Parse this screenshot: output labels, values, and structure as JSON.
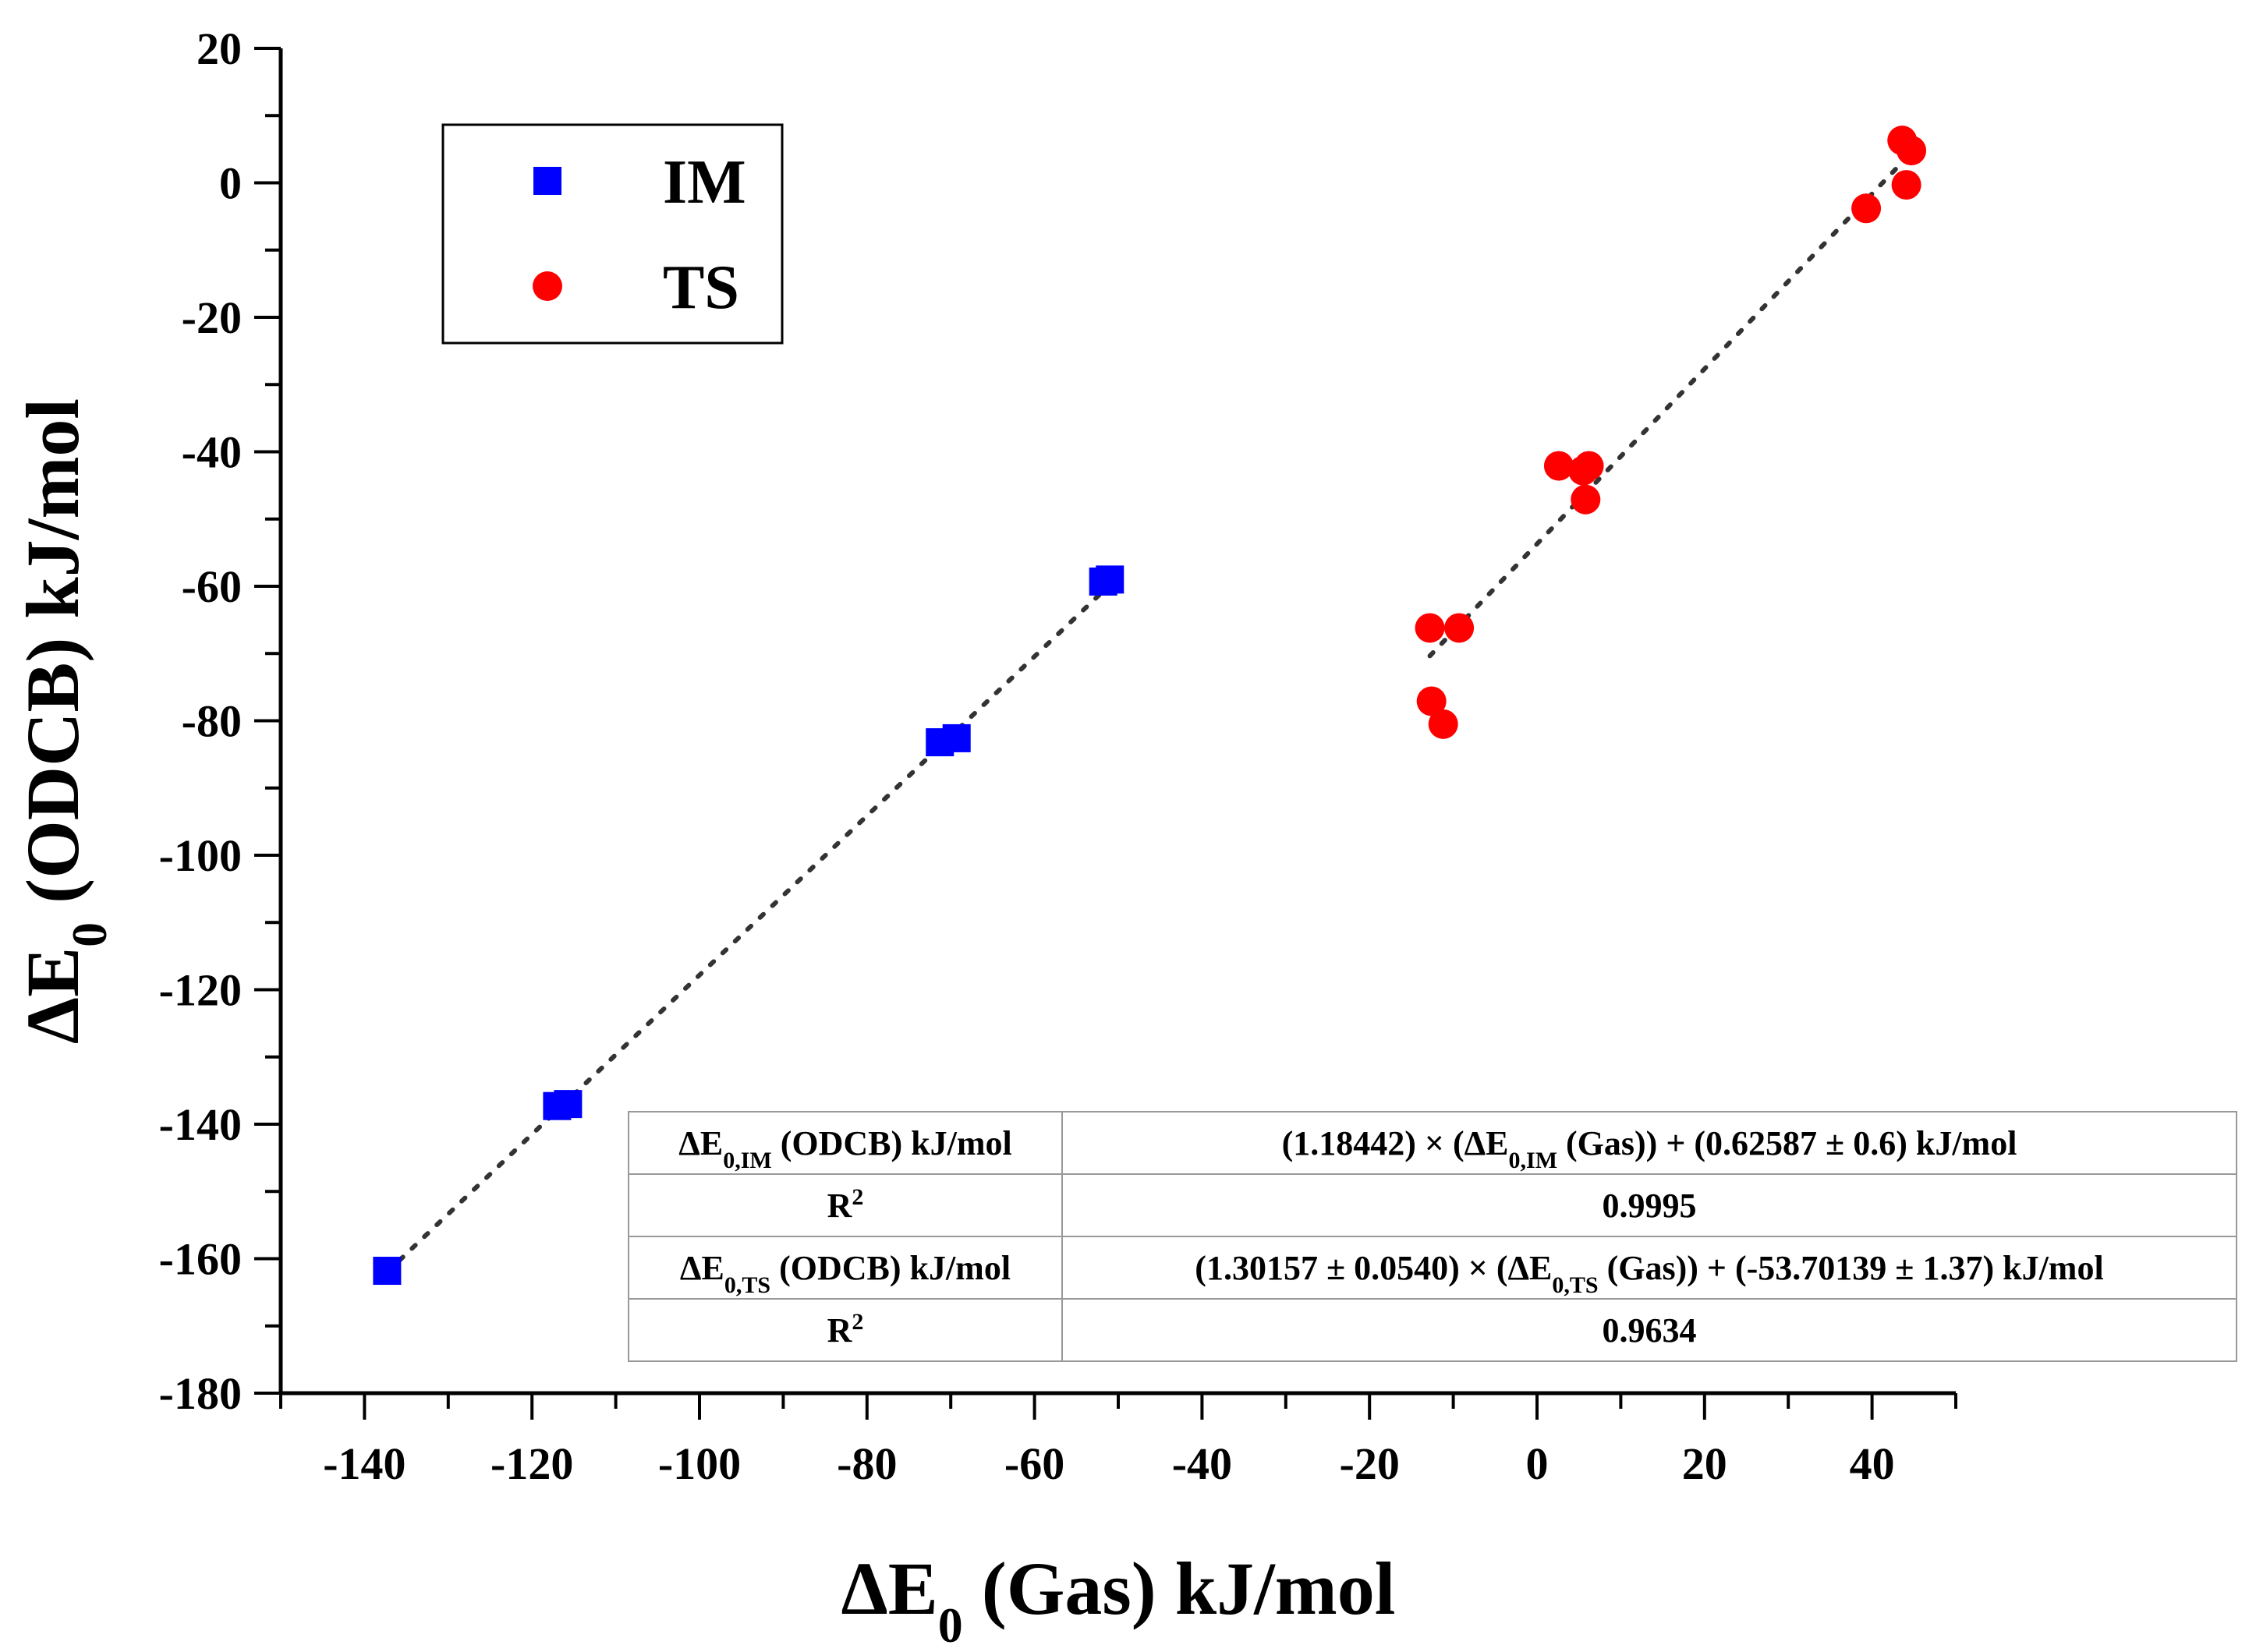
{
  "chart_data": {
    "type": "scatter",
    "xlabel": {
      "main": "ΔE",
      "sub": "0",
      "rest": " (Gas) kJ/mol"
    },
    "ylabel": {
      "main": "ΔE",
      "sub": "0",
      "rest": " (ODCB) kJ/mol"
    },
    "xlim": [
      -150,
      50
    ],
    "ylim": [
      -180,
      20
    ],
    "xticks": [
      -140,
      -120,
      -100,
      -80,
      -60,
      -40,
      -20,
      0,
      20,
      40
    ],
    "yticks": [
      20,
      0,
      -20,
      -40,
      -60,
      -80,
      -100,
      -120,
      -140,
      -160,
      -180
    ],
    "legend_position": "top-left",
    "series": [
      {
        "name": "IM",
        "marker": "square",
        "color": "#0000ff",
        "points": [
          [
            -137.3,
            -161.8
          ],
          [
            -117,
            -137.3
          ],
          [
            -115.7,
            -137
          ],
          [
            -71.3,
            -83.2
          ],
          [
            -69.3,
            -82.6
          ],
          [
            -51.8,
            -59.3
          ],
          [
            -51,
            -59
          ]
        ],
        "fit": {
          "slope": 1.18442,
          "intercept": 0.62587,
          "x_range": [
            -137.3,
            -51
          ]
        }
      },
      {
        "name": "TS",
        "marker": "circle",
        "color": "#ff0000",
        "points": [
          [
            -12.8,
            -66.2
          ],
          [
            -9.3,
            -66.2
          ],
          [
            -12.6,
            -77.1
          ],
          [
            -11.2,
            -80.5
          ],
          [
            2.6,
            -42.1
          ],
          [
            6.2,
            -42.1
          ],
          [
            5.5,
            -42.8
          ],
          [
            5.8,
            -47.1
          ],
          [
            39.3,
            -3.8
          ],
          [
            43.6,
            6.3
          ],
          [
            44.7,
            4.8
          ],
          [
            44.1,
            -0.3
          ]
        ],
        "fit": {
          "slope": 1.30157,
          "intercept": -53.70139,
          "x_range": [
            -12.8,
            44.7
          ]
        }
      }
    ],
    "table": [
      {
        "label": {
          "a": "ΔE",
          "sub": "0,IM",
          "b": " (ODCB) kJ/mol"
        },
        "value": {
          "a": "(1.18442) × (ΔE",
          "sub": "0,IM",
          "b": " (Gas)) + (0.62587 ± 0.6) kJ/mol"
        }
      },
      {
        "label": {
          "a": "R",
          "sup": "2"
        },
        "value": {
          "a": "0.9995"
        }
      },
      {
        "label": {
          "a": "ΔE",
          "sub": "0,TS",
          "b": " (ODCB) kJ/mol"
        },
        "value": {
          "a": "(1.30157 ± 0.0540) × (ΔE",
          "sub": "0,TS",
          "b": " (Gas)) + (-53.70139 ± 1.37) kJ/mol"
        }
      },
      {
        "label": {
          "a": "R",
          "sup": "2"
        },
        "value": {
          "a": "0.9634"
        }
      }
    ]
  }
}
